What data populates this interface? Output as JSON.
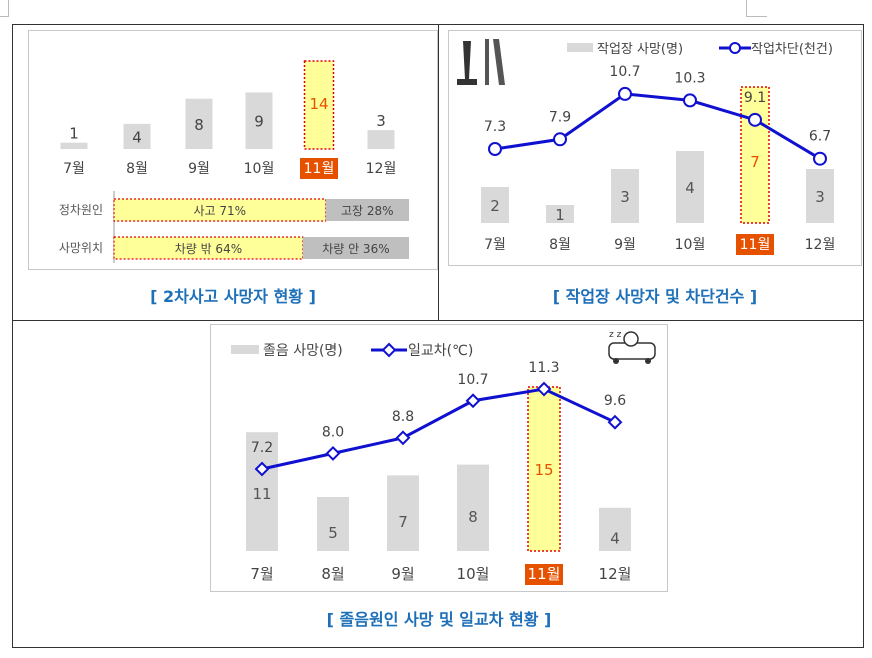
{
  "captions": {
    "panel1": "[ 2차사고 사망자 현황 ]",
    "panel2": "[ 작업장 사망자 및 차단건수 ]",
    "panel3": "[ 졸음원인 사망 및 일교차 현황 ]"
  },
  "highlight_color": "#e65100",
  "bar_color": "#d9d9d9",
  "highlight_fill": "#ffff99",
  "line_color": "#1010d0",
  "chart_data": [
    {
      "type": "bar",
      "categories": [
        "7월",
        "8월",
        "9월",
        "10월",
        "11월",
        "12월"
      ],
      "values": [
        1,
        4,
        8,
        9,
        14,
        3
      ],
      "highlight_index": 4,
      "ylim": [
        0,
        16
      ],
      "breakdown": [
        {
          "label": "정차원인",
          "segments": [
            {
              "text": "사고 71%",
              "value": 71
            },
            {
              "text": "고장 28%",
              "value": 28
            }
          ]
        },
        {
          "label": "사망위치",
          "segments": [
            {
              "text": "차량 밖 64%",
              "value": 64
            },
            {
              "text": "차량 안 36%",
              "value": 36
            }
          ]
        }
      ]
    },
    {
      "type": "bar+line",
      "categories": [
        "7월",
        "8월",
        "9월",
        "10월",
        "11월",
        "12월"
      ],
      "legend": [
        "작업장 사망(명)",
        "작업차단(천건)"
      ],
      "series": [
        {
          "name": "작업장 사망(명)",
          "type": "bar",
          "values": [
            2,
            1,
            3,
            4,
            7,
            3
          ]
        },
        {
          "name": "작업차단(천건)",
          "type": "line",
          "values": [
            7.3,
            7.9,
            10.7,
            10.3,
            9.1,
            6.7
          ],
          "labels": [
            "7.3",
            "7.9",
            "10.7",
            "10.3",
            "9.1",
            "6.7"
          ]
        }
      ],
      "highlight_index": 4,
      "icon": "road-cone-icon"
    },
    {
      "type": "bar+line",
      "categories": [
        "7월",
        "8월",
        "9월",
        "10월",
        "11월",
        "12월"
      ],
      "legend": [
        "졸음 사망(명)",
        "일교차(℃)"
      ],
      "series": [
        {
          "name": "졸음 사망(명)",
          "type": "bar",
          "values": [
            11,
            5,
            7,
            8,
            15,
            4
          ]
        },
        {
          "name": "일교차(℃)",
          "type": "line",
          "values": [
            7.2,
            8.0,
            8.8,
            10.7,
            11.3,
            9.6
          ],
          "labels": [
            "7.2",
            "8.0",
            "8.8",
            "10.7",
            "11.3",
            "9.6"
          ]
        }
      ],
      "highlight_index": 4,
      "icon": "drowsy-driver-icon"
    }
  ]
}
